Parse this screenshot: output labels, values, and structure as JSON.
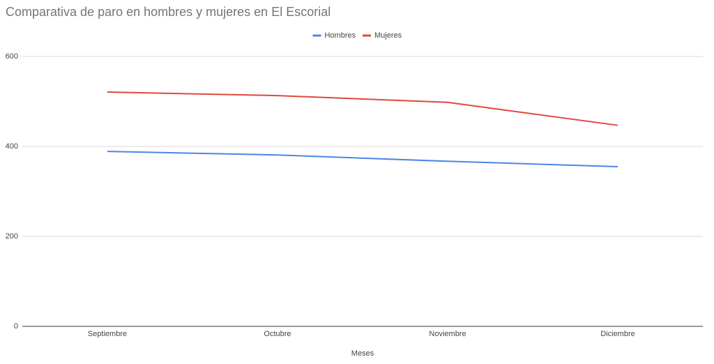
{
  "chart_data": {
    "type": "line",
    "title": "Comparativa de paro en hombres y mujeres en El Escorial",
    "x_label": "Meses",
    "categories": [
      "Septiembre",
      "Octubre",
      "Noviembre",
      "Diciembre"
    ],
    "series": [
      {
        "name": "Hombres",
        "color": "#4a86e8",
        "values": [
          389,
          381,
          367,
          355
        ]
      },
      {
        "name": "Mujeres",
        "color": "#e0483e",
        "values": [
          521,
          513,
          498,
          447
        ]
      }
    ],
    "ylim": [
      0,
      600
    ],
    "yticks": [
      0,
      200,
      400,
      600
    ],
    "grid": true,
    "legend": "top"
  }
}
